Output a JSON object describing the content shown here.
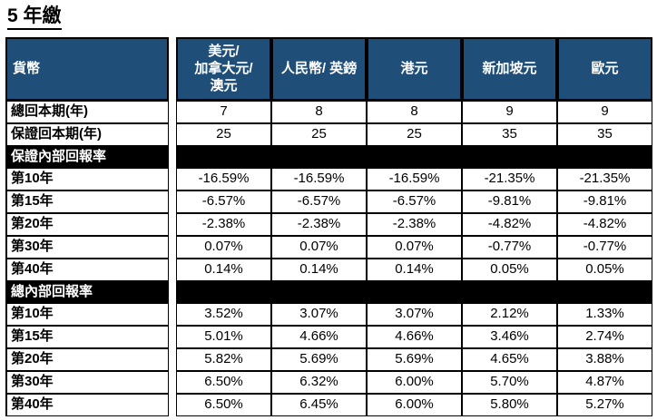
{
  "title": "5 年繳",
  "colors": {
    "header_bg": "#1F4E79",
    "header_text": "#FFFFFF",
    "section_bg": "#000000",
    "section_text": "#FFFFFF",
    "border": "#000000",
    "body_bg": "#FFFFFF"
  },
  "table": {
    "header": {
      "currency_label": "貨幣",
      "columns": [
        "美元/\n加拿大元/\n澳元",
        "人民幣/ 英鎊",
        "港元",
        "新加坡元",
        "歐元"
      ]
    },
    "rows": [
      {
        "type": "data",
        "label": "總回本期(年)",
        "values": [
          "7",
          "8",
          "8",
          "9",
          "9"
        ]
      },
      {
        "type": "data",
        "label": "保證回本期(年)",
        "values": [
          "25",
          "25",
          "25",
          "35",
          "35"
        ]
      },
      {
        "type": "section",
        "label": "保證內部回報率"
      },
      {
        "type": "data",
        "label": "第10年",
        "values": [
          "-16.59%",
          "-16.59%",
          "-16.59%",
          "-21.35%",
          "-21.35%"
        ]
      },
      {
        "type": "data",
        "label": "第15年",
        "values": [
          "-6.57%",
          "-6.57%",
          "-6.57%",
          "-9.81%",
          "-9.81%"
        ]
      },
      {
        "type": "data",
        "label": "第20年",
        "values": [
          "-2.38%",
          "-2.38%",
          "-2.38%",
          "-4.82%",
          "-4.82%"
        ]
      },
      {
        "type": "data",
        "label": "第30年",
        "values": [
          "0.07%",
          "0.07%",
          "0.07%",
          "-0.77%",
          "-0.77%"
        ]
      },
      {
        "type": "data",
        "label": "第40年",
        "values": [
          "0.14%",
          "0.14%",
          "0.14%",
          "0.05%",
          "0.05%"
        ]
      },
      {
        "type": "section",
        "label": "總內部回報率"
      },
      {
        "type": "data",
        "label": "第10年",
        "values": [
          "3.52%",
          "3.07%",
          "3.07%",
          "2.12%",
          "1.33%"
        ]
      },
      {
        "type": "data",
        "label": "第15年",
        "values": [
          "5.01%",
          "4.66%",
          "4.66%",
          "3.46%",
          "2.74%"
        ]
      },
      {
        "type": "data",
        "label": "第20年",
        "values": [
          "5.82%",
          "5.69%",
          "5.69%",
          "4.65%",
          "3.88%"
        ]
      },
      {
        "type": "data",
        "label": "第30年",
        "values": [
          "6.50%",
          "6.32%",
          "6.00%",
          "5.70%",
          "4.87%"
        ]
      },
      {
        "type": "data",
        "label": "第40年",
        "values": [
          "6.50%",
          "6.45%",
          "6.00%",
          "5.80%",
          "5.27%"
        ]
      }
    ]
  }
}
